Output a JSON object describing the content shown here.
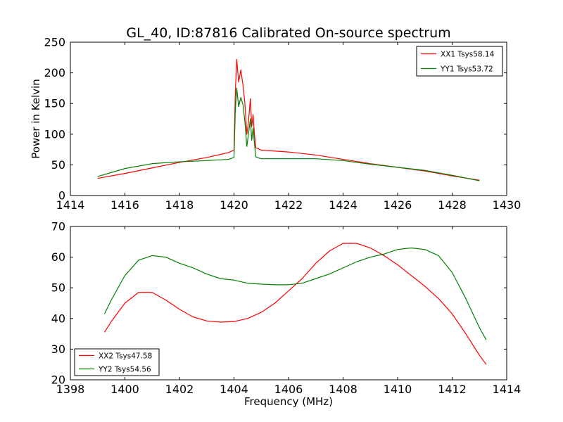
{
  "chart_data": [
    {
      "type": "line",
      "title": "GL_40, ID:87816 Calibrated On-source spectrum",
      "xlabel": "",
      "ylabel": "Power in Kelvin",
      "xlim": [
        1414,
        1430
      ],
      "ylim": [
        0,
        250
      ],
      "xticks": [
        1414,
        1416,
        1418,
        1420,
        1422,
        1424,
        1426,
        1428,
        1430
      ],
      "yticks": [
        0,
        50,
        100,
        150,
        200,
        250
      ],
      "legend_position": "top-right",
      "series": [
        {
          "name": "XX1 Tsys58.14",
          "color": "#ff0000",
          "points": [
            [
              1415.0,
              28
            ],
            [
              1416.0,
              36
            ],
            [
              1417.0,
              45
            ],
            [
              1418.0,
              54
            ],
            [
              1419.0,
              62
            ],
            [
              1419.8,
              70
            ],
            [
              1420.0,
              74
            ],
            [
              1420.05,
              170
            ],
            [
              1420.1,
              222
            ],
            [
              1420.17,
              185
            ],
            [
              1420.25,
              205
            ],
            [
              1420.33,
              180
            ],
            [
              1420.4,
              150
            ],
            [
              1420.47,
              100
            ],
            [
              1420.53,
              120
            ],
            [
              1420.6,
              158
            ],
            [
              1420.65,
              112
            ],
            [
              1420.7,
              132
            ],
            [
              1420.75,
              100
            ],
            [
              1420.8,
              78
            ],
            [
              1421.0,
              74
            ],
            [
              1422.0,
              71
            ],
            [
              1423.0,
              66
            ],
            [
              1424.0,
              59
            ],
            [
              1425.0,
              52
            ],
            [
              1426.0,
              46
            ],
            [
              1427.0,
              40
            ],
            [
              1428.0,
              32
            ],
            [
              1429.0,
              25
            ]
          ]
        },
        {
          "name": "YY1 Tsys53.72",
          "color": "#008000",
          "points": [
            [
              1415.0,
              31
            ],
            [
              1416.0,
              44
            ],
            [
              1417.0,
              52
            ],
            [
              1418.0,
              55
            ],
            [
              1419.0,
              57
            ],
            [
              1419.8,
              59
            ],
            [
              1420.0,
              62
            ],
            [
              1420.05,
              140
            ],
            [
              1420.1,
              175
            ],
            [
              1420.17,
              145
            ],
            [
              1420.25,
              160
            ],
            [
              1420.33,
              148
            ],
            [
              1420.4,
              120
            ],
            [
              1420.47,
              80
            ],
            [
              1420.53,
              100
            ],
            [
              1420.6,
              125
            ],
            [
              1420.65,
              90
            ],
            [
              1420.7,
              110
            ],
            [
              1420.75,
              85
            ],
            [
              1420.8,
              63
            ],
            [
              1421.0,
              60
            ],
            [
              1422.0,
              60
            ],
            [
              1423.0,
              60
            ],
            [
              1424.0,
              57
            ],
            [
              1425.0,
              51
            ],
            [
              1426.0,
              46
            ],
            [
              1427.0,
              41
            ],
            [
              1428.0,
              33
            ],
            [
              1429.0,
              24
            ]
          ]
        }
      ]
    },
    {
      "type": "line",
      "title": "",
      "xlabel": "Frequency (MHz)",
      "ylabel": "",
      "xlim": [
        1398,
        1414
      ],
      "ylim": [
        20,
        70
      ],
      "xticks": [
        1398,
        1400,
        1402,
        1404,
        1406,
        1408,
        1410,
        1412,
        1414
      ],
      "yticks": [
        20,
        30,
        40,
        50,
        60,
        70
      ],
      "legend_position": "bottom-left",
      "series": [
        {
          "name": "XX2 Tsys47.58",
          "color": "#ff0000",
          "points": [
            [
              1399.25,
              35.5
            ],
            [
              1399.5,
              39
            ],
            [
              1400.0,
              45
            ],
            [
              1400.5,
              48.5
            ],
            [
              1401.0,
              48.5
            ],
            [
              1401.5,
              46
            ],
            [
              1402.0,
              43
            ],
            [
              1402.5,
              40.5
            ],
            [
              1403.0,
              39.2
            ],
            [
              1403.5,
              38.8
            ],
            [
              1404.0,
              39
            ],
            [
              1404.5,
              40
            ],
            [
              1405.0,
              42
            ],
            [
              1405.5,
              45
            ],
            [
              1406.0,
              49
            ],
            [
              1406.5,
              53
            ],
            [
              1407.0,
              58
            ],
            [
              1407.5,
              62
            ],
            [
              1408.0,
              64.5
            ],
            [
              1408.5,
              64.5
            ],
            [
              1409.0,
              63
            ],
            [
              1409.5,
              60.5
            ],
            [
              1410.0,
              57.5
            ],
            [
              1410.5,
              54
            ],
            [
              1411.0,
              50.5
            ],
            [
              1411.5,
              46.5
            ],
            [
              1412.0,
              41.5
            ],
            [
              1412.5,
              35
            ],
            [
              1413.0,
              28
            ],
            [
              1413.25,
              25
            ]
          ]
        },
        {
          "name": "YY2 Tsys54.56",
          "color": "#008000",
          "points": [
            [
              1399.25,
              41.5
            ],
            [
              1399.5,
              46
            ],
            [
              1400.0,
              54
            ],
            [
              1400.5,
              59
            ],
            [
              1401.0,
              60.5
            ],
            [
              1401.5,
              60
            ],
            [
              1402.0,
              58
            ],
            [
              1402.5,
              56.5
            ],
            [
              1403.0,
              54.5
            ],
            [
              1403.5,
              53
            ],
            [
              1404.0,
              52.5
            ],
            [
              1404.5,
              51.5
            ],
            [
              1405.0,
              51.2
            ],
            [
              1405.5,
              51
            ],
            [
              1406.0,
              51
            ],
            [
              1406.5,
              51.5
            ],
            [
              1407.0,
              53
            ],
            [
              1407.5,
              54.5
            ],
            [
              1408.0,
              56.5
            ],
            [
              1408.5,
              58.5
            ],
            [
              1409.0,
              60
            ],
            [
              1409.5,
              61
            ],
            [
              1410.0,
              62.5
            ],
            [
              1410.5,
              63
            ],
            [
              1411.0,
              62.5
            ],
            [
              1411.5,
              60.5
            ],
            [
              1412.0,
              55
            ],
            [
              1412.5,
              46.5
            ],
            [
              1413.0,
              37
            ],
            [
              1413.25,
              33
            ]
          ]
        }
      ]
    }
  ]
}
